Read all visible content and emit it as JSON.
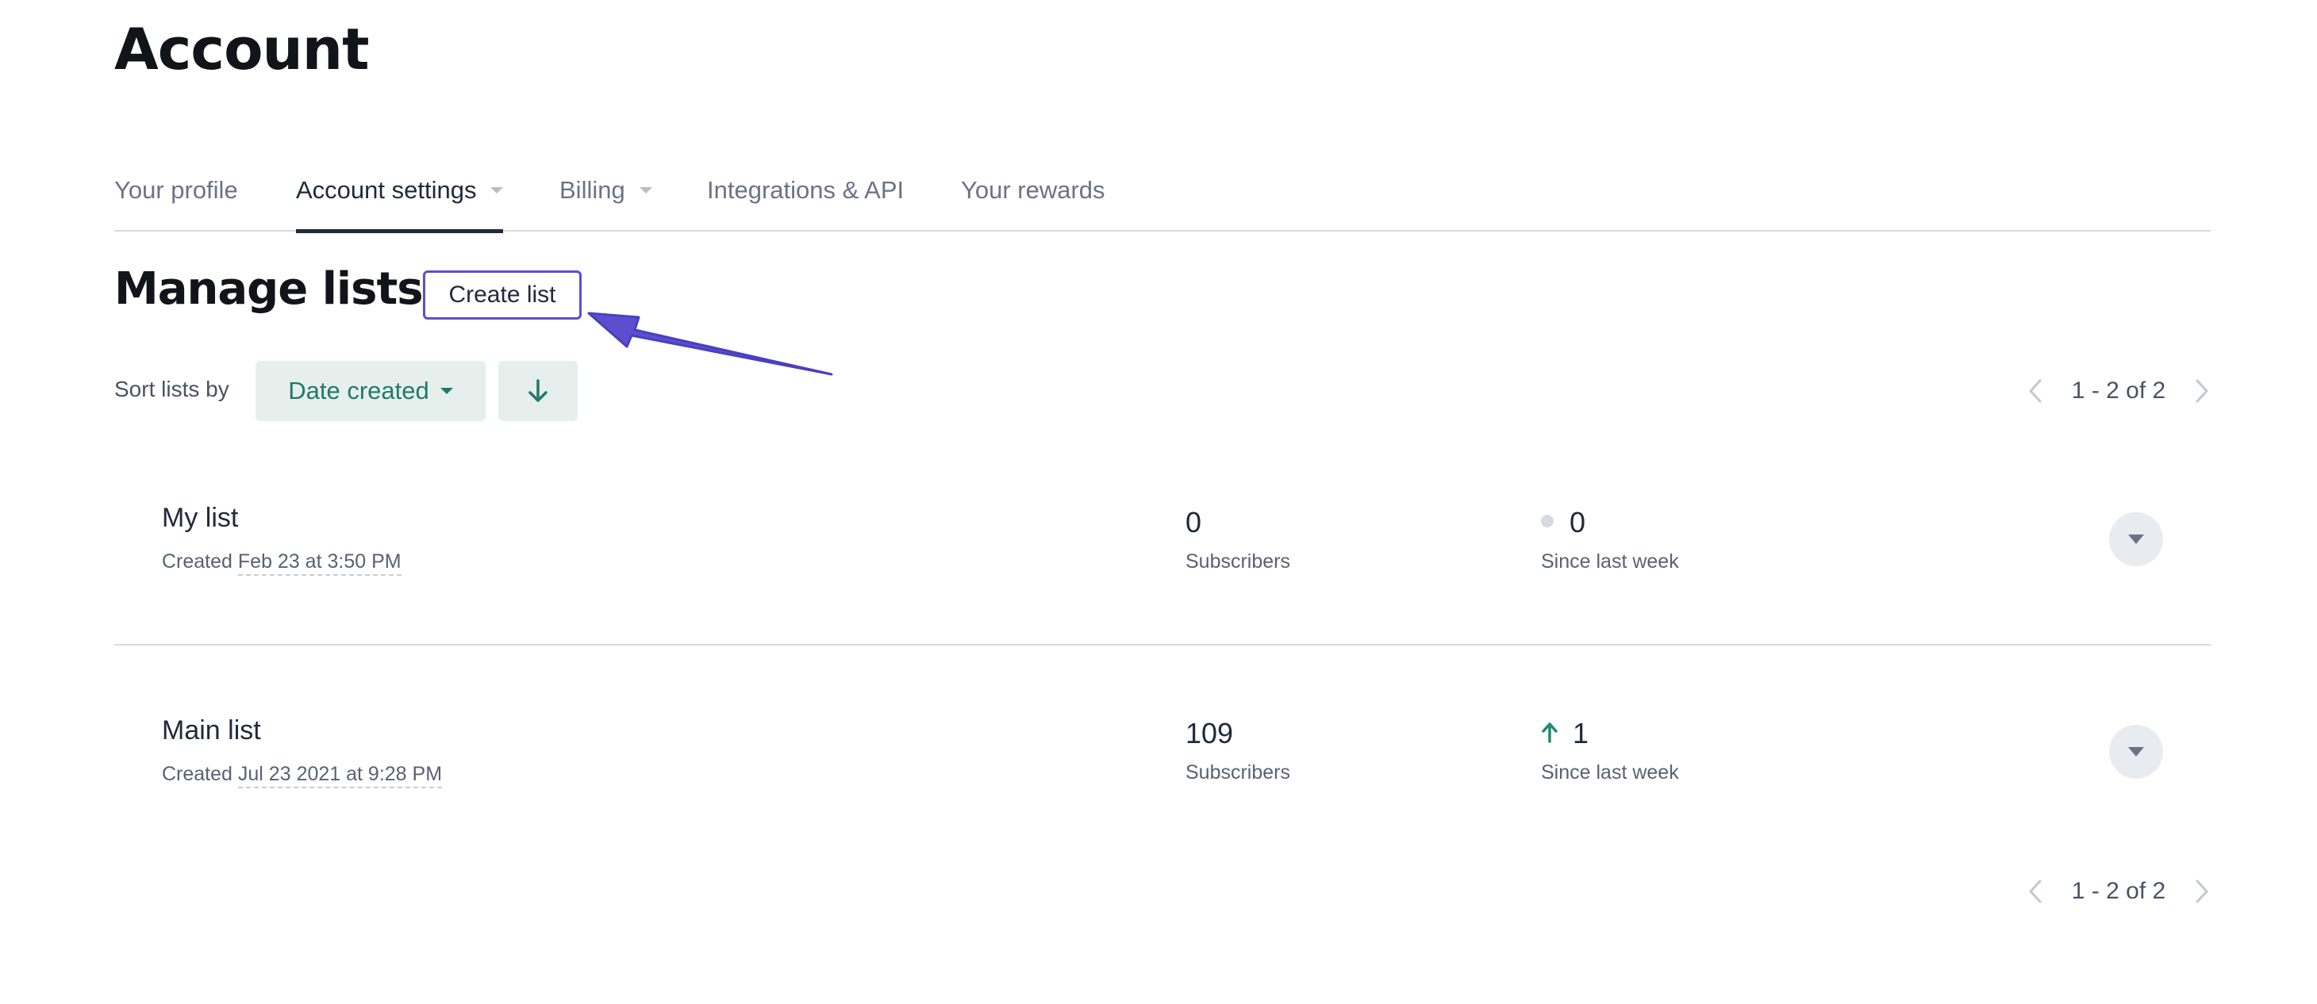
{
  "header": {
    "title": "Account"
  },
  "tabs": [
    {
      "label": "Your profile"
    },
    {
      "label": "Account settings"
    },
    {
      "label": "Billing"
    },
    {
      "label": "Integrations & API"
    },
    {
      "label": "Your rewards"
    }
  ],
  "section": {
    "title": "Manage lists",
    "create_button": "Create list"
  },
  "sort": {
    "label": "Sort lists by",
    "selected": "Date created",
    "direction_icon": "arrow-down-icon"
  },
  "pagination": {
    "top": "1 - 2 of 2",
    "bottom": "1 - 2 of 2"
  },
  "lists": [
    {
      "name": "My list",
      "created_prefix": "Created",
      "created_date": "Feb 23 at 3:50 PM",
      "subscribers": "0",
      "subscribers_label": "Subscribers",
      "change": "0",
      "change_label": "Since last week",
      "change_indicator": "neutral-dot"
    },
    {
      "name": "Main list",
      "created_prefix": "Created",
      "created_date": "Jul 23 2021 at 9:28 PM",
      "subscribers": "109",
      "subscribers_label": "Subscribers",
      "change": "1",
      "change_label": "Since last week",
      "change_indicator": "arrow-up-icon"
    }
  ],
  "colors": {
    "accent": "#1f7a6d",
    "annotation": "#5b4fcf",
    "heading": "#111418",
    "muted": "#6b7385"
  }
}
